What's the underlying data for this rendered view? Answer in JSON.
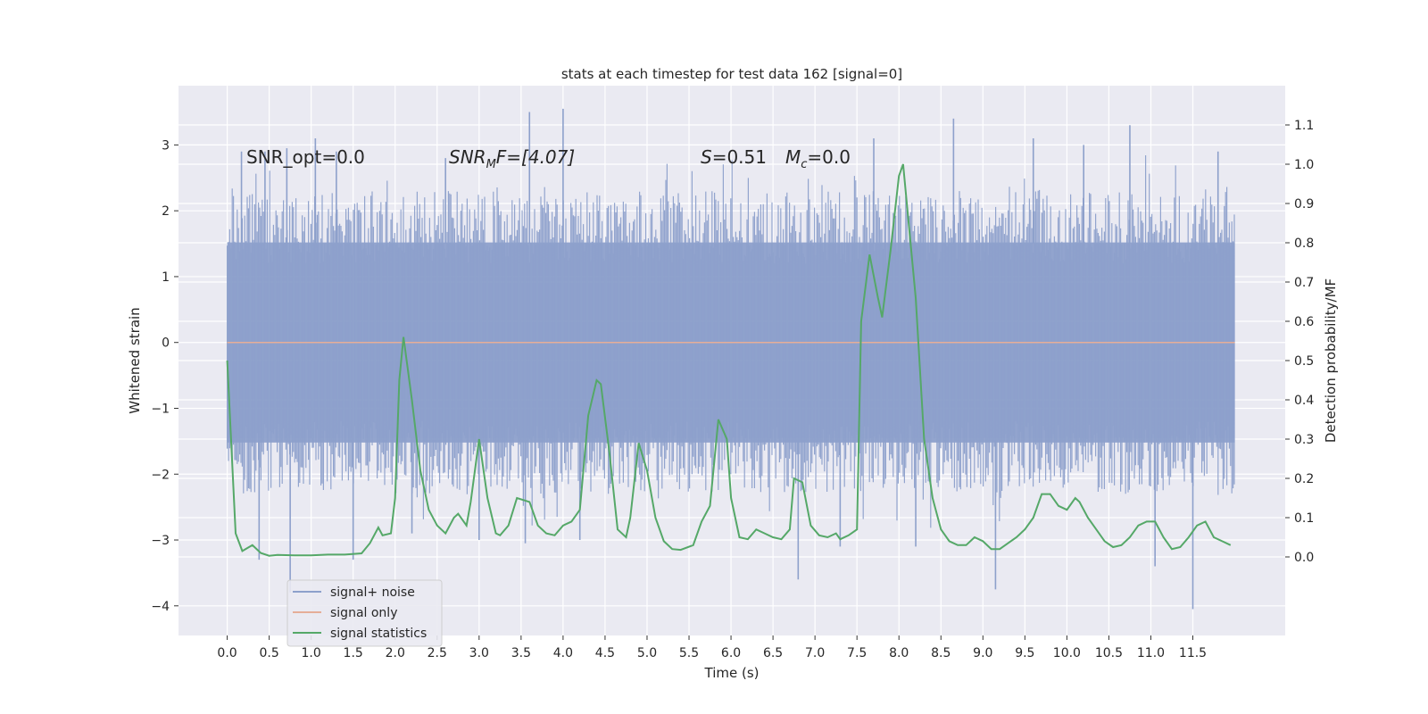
{
  "chart_data": {
    "type": "line",
    "title": "stats at each timestep for test data 162 [signal=0]",
    "xlabel": "Time (s)",
    "ylabel_left": "Whitened strain",
    "ylabel_right": "Detection probability/MF",
    "xlim": [
      -0.58,
      12.6
    ],
    "ylim_left": [
      -4.45,
      3.9
    ],
    "ylim_right": [
      -0.2,
      1.2
    ],
    "x_ticks": [
      0.0,
      0.5,
      1.0,
      1.5,
      2.0,
      2.5,
      3.0,
      3.5,
      4.0,
      4.5,
      5.0,
      5.5,
      6.0,
      6.5,
      7.0,
      7.5,
      8.0,
      8.5,
      9.0,
      9.5,
      10.0,
      10.5,
      11.0,
      11.5
    ],
    "x_tick_labels": [
      "0.0",
      "0.5",
      "1.0",
      "1.5",
      "2.0",
      "2.5",
      "3.0",
      "3.5",
      "4.0",
      "4.5",
      "5.0",
      "5.5",
      "6.0",
      "6.5",
      "7.0",
      "7.5",
      "8.0",
      "8.5",
      "9.0",
      "9.5",
      "10.0",
      "10.5",
      "11.0",
      "11.5"
    ],
    "y_left_ticks": [
      -4,
      -3,
      -2,
      -1,
      0,
      1,
      2,
      3
    ],
    "y_left_tick_labels": [
      "−4",
      "−3",
      "−2",
      "−1",
      "0",
      "1",
      "2",
      "3"
    ],
    "y_right_ticks": [
      0.0,
      0.1,
      0.2,
      0.3,
      0.4,
      0.5,
      0.6,
      0.7,
      0.8,
      0.9,
      1.0,
      1.1
    ],
    "y_right_tick_labels": [
      "0.0",
      "0.1",
      "0.2",
      "0.3",
      "0.4",
      "0.5",
      "0.6",
      "0.7",
      "0.8",
      "0.9",
      "1.0",
      "1.1"
    ],
    "grid": true,
    "annotations": {
      "snr_opt": "SNR_opt=0.0",
      "snr_mf_main": "SNR",
      "snr_mf_sub": "M",
      "snr_mf_rest": "F=[4.07]",
      "s_main": "S",
      "s_rest": "=0.51",
      "mc_main": "M",
      "mc_sub": "c",
      "mc_rest": "=0.0"
    },
    "legend": {
      "position": "lower-left",
      "entries": [
        "signal+ noise",
        "signal only",
        "signal statistics"
      ]
    },
    "series": [
      {
        "name": "signal+ noise",
        "axis": "left",
        "color": "#8da0cb",
        "kind": "noise",
        "x_range": [
          0.0,
          12.0
        ],
        "typical_range": [
          -1.6,
          1.6
        ],
        "spikes": [
          {
            "x": 0.17,
            "y": 2.9
          },
          {
            "x": 0.38,
            "y": -3.3
          },
          {
            "x": 0.45,
            "y": 2.9
          },
          {
            "x": 0.71,
            "y": 2.95
          },
          {
            "x": 0.75,
            "y": -3.8
          },
          {
            "x": 1.05,
            "y": 3.1
          },
          {
            "x": 1.3,
            "y": 2.9
          },
          {
            "x": 1.5,
            "y": -3.3
          },
          {
            "x": 2.2,
            "y": -2.9
          },
          {
            "x": 2.6,
            "y": 2.8
          },
          {
            "x": 3.0,
            "y": -3.0
          },
          {
            "x": 3.6,
            "y": 3.5
          },
          {
            "x": 3.55,
            "y": -3.05
          },
          {
            "x": 4.0,
            "y": 3.55
          },
          {
            "x": 4.2,
            "y": -3.0
          },
          {
            "x": 6.8,
            "y": -3.6
          },
          {
            "x": 7.3,
            "y": -3.1
          },
          {
            "x": 7.7,
            "y": 3.1
          },
          {
            "x": 8.2,
            "y": -3.1
          },
          {
            "x": 8.65,
            "y": 3.4
          },
          {
            "x": 9.15,
            "y": -3.75
          },
          {
            "x": 9.6,
            "y": 3.1
          },
          {
            "x": 10.2,
            "y": 3.0
          },
          {
            "x": 10.75,
            "y": 3.3
          },
          {
            "x": 11.05,
            "y": -3.4
          },
          {
            "x": 11.5,
            "y": -4.05
          },
          {
            "x": 11.8,
            "y": 2.9
          }
        ]
      },
      {
        "name": "signal only",
        "axis": "left",
        "color": "#e5ae98",
        "x": [
          0.0,
          12.0
        ],
        "y": [
          0.0,
          0.0
        ]
      },
      {
        "name": "signal statistics",
        "axis": "right",
        "color": "#55a868",
        "x": [
          0.0,
          0.1,
          0.18,
          0.3,
          0.4,
          0.5,
          0.6,
          0.8,
          1.0,
          1.2,
          1.4,
          1.6,
          1.7,
          1.8,
          1.85,
          1.95,
          2.0,
          2.05,
          2.1,
          2.2,
          2.3,
          2.35,
          2.4,
          2.5,
          2.6,
          2.7,
          2.75,
          2.85,
          2.9,
          3.0,
          3.1,
          3.2,
          3.25,
          3.35,
          3.45,
          3.6,
          3.7,
          3.8,
          3.9,
          4.0,
          4.1,
          4.2,
          4.3,
          4.4,
          4.45,
          4.55,
          4.65,
          4.75,
          4.8,
          4.9,
          5.0,
          5.1,
          5.2,
          5.3,
          5.4,
          5.55,
          5.65,
          5.75,
          5.85,
          5.95,
          6.0,
          6.1,
          6.2,
          6.3,
          6.4,
          6.5,
          6.6,
          6.7,
          6.75,
          6.85,
          6.95,
          7.05,
          7.15,
          7.25,
          7.3,
          7.4,
          7.5,
          7.55,
          7.65,
          7.75,
          7.8,
          7.9,
          8.0,
          8.05,
          8.2,
          8.3,
          8.4,
          8.5,
          8.6,
          8.7,
          8.8,
          8.9,
          9.0,
          9.1,
          9.2,
          9.3,
          9.4,
          9.5,
          9.6,
          9.7,
          9.8,
          9.9,
          10.0,
          10.1,
          10.15,
          10.25,
          10.35,
          10.45,
          10.55,
          10.65,
          10.75,
          10.85,
          10.95,
          11.05,
          11.15,
          11.25,
          11.35,
          11.45,
          11.55,
          11.65,
          11.75,
          11.85,
          11.95
        ],
        "y": [
          0.5,
          0.06,
          0.015,
          0.03,
          0.01,
          0.003,
          0.005,
          0.004,
          0.004,
          0.006,
          0.006,
          0.009,
          0.035,
          0.075,
          0.055,
          0.06,
          0.15,
          0.45,
          0.56,
          0.4,
          0.22,
          0.17,
          0.12,
          0.08,
          0.06,
          0.1,
          0.11,
          0.08,
          0.14,
          0.3,
          0.15,
          0.06,
          0.055,
          0.08,
          0.15,
          0.14,
          0.08,
          0.06,
          0.055,
          0.08,
          0.09,
          0.12,
          0.36,
          0.45,
          0.44,
          0.27,
          0.07,
          0.05,
          0.1,
          0.29,
          0.22,
          0.1,
          0.04,
          0.02,
          0.018,
          0.03,
          0.09,
          0.13,
          0.35,
          0.3,
          0.15,
          0.05,
          0.045,
          0.07,
          0.06,
          0.05,
          0.045,
          0.07,
          0.2,
          0.19,
          0.08,
          0.055,
          0.05,
          0.06,
          0.045,
          0.055,
          0.07,
          0.6,
          0.77,
          0.66,
          0.61,
          0.78,
          0.97,
          1.0,
          0.66,
          0.3,
          0.15,
          0.07,
          0.04,
          0.03,
          0.03,
          0.05,
          0.04,
          0.02,
          0.02,
          0.035,
          0.05,
          0.07,
          0.1,
          0.16,
          0.16,
          0.13,
          0.12,
          0.15,
          0.14,
          0.1,
          0.07,
          0.04,
          0.025,
          0.03,
          0.05,
          0.08,
          0.09,
          0.09,
          0.05,
          0.02,
          0.025,
          0.05,
          0.08,
          0.09,
          0.05,
          0.04,
          0.03
        ]
      }
    ]
  }
}
